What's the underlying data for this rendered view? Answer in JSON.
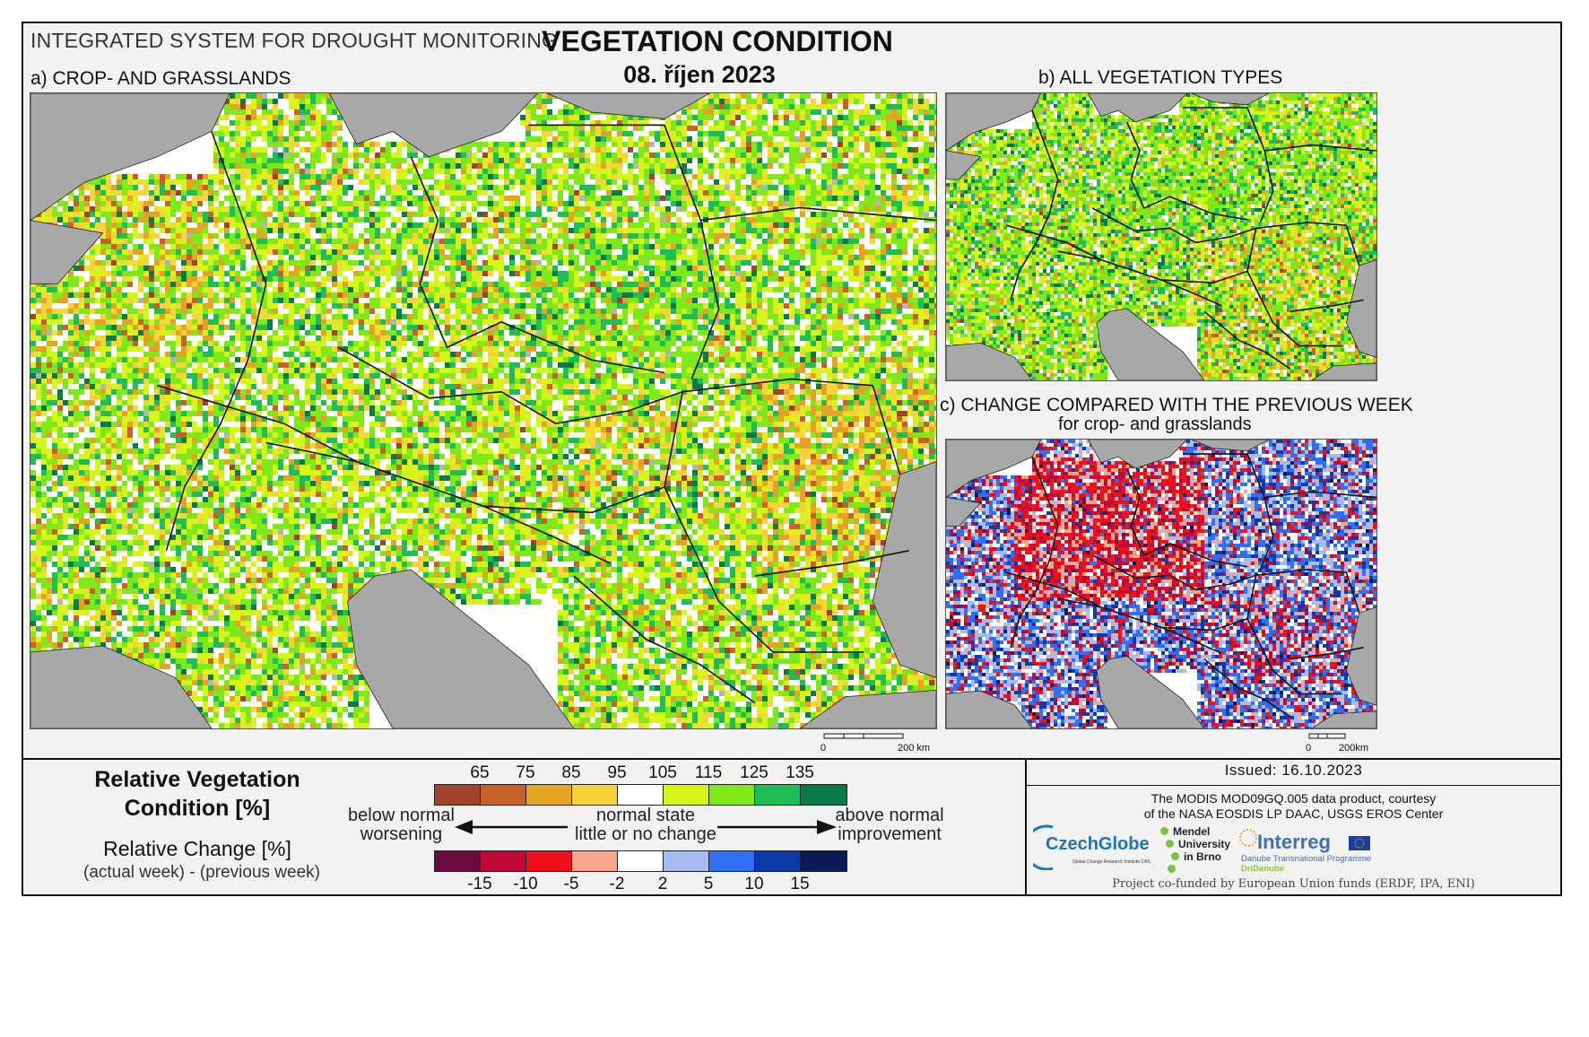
{
  "header": {
    "system": "INTEGRATED SYSTEM FOR DROUGHT MONITORING",
    "title": "VEGETATION CONDITION",
    "date": "08. říjen 2023"
  },
  "panels": {
    "a": "a) CROP- AND GRASSLANDS",
    "b": "b) ALL VEGETATION TYPES",
    "c_line1": "c) CHANGE COMPARED WITH THE PREVIOUS WEEK",
    "c_line2": "for crop- and grasslands"
  },
  "scale": {
    "main": {
      "zero": "0",
      "end": "200 km"
    },
    "small": {
      "zero": "0",
      "end": "200km"
    }
  },
  "legend": {
    "rvc_title_line1": "Relative Vegetation",
    "rvc_title_line2": "Condition [%]",
    "rc_title": "Relative Change [%]",
    "rc_sub": "(actual week) - (previous week)",
    "rvc_ticks": [
      "65",
      "75",
      "85",
      "95",
      "105",
      "115",
      "125",
      "135"
    ],
    "rvc_colors": [
      "#a0432a",
      "#c8602a",
      "#e4a322",
      "#f8d43a",
      "#ffffff",
      "#d6f51b",
      "#7ee81a",
      "#1fbd57",
      "#0a7a4a"
    ],
    "rc_ticks": [
      "-15",
      "-10",
      "-5",
      "-2",
      "2",
      "5",
      "10",
      "15"
    ],
    "rc_colors": [
      "#6a0b3d",
      "#c0093a",
      "#f0101a",
      "#f9a48c",
      "#ffffff",
      "#a7bbf2",
      "#2f6ef5",
      "#0d3aa8",
      "#0b1a55"
    ],
    "left_line1": "below normal",
    "left_line2": "worsening",
    "mid_line1": "normal state",
    "mid_line2": "little or no change",
    "right_line1": "above normal",
    "right_line2": "improvement"
  },
  "footer": {
    "issued": "Issued: 16.10.2023",
    "credit_line1": "The MODIS MOD09GQ.005 data product, courtesy",
    "credit_line2": "of the NASA EOSDIS LP DAAC, USGS EROS Center",
    "funded": "Project co-funded by European Union funds (ERDF, IPA, ENI)",
    "logo_czechglobe": "CzechGlobe",
    "logo_czechglobe_sub": "Global Change Research Institute CAS",
    "logo_mendel_1": "Mendel",
    "logo_mendel_2": "University",
    "logo_mendel_3": "in Brno",
    "logo_interreg": "Interreg",
    "logo_interreg_sub": "Danube Transnational Programme",
    "logo_interreg_proj": "DriDanube"
  },
  "colors": {
    "sea": "#a8a8a8",
    "frame": "#111111"
  }
}
